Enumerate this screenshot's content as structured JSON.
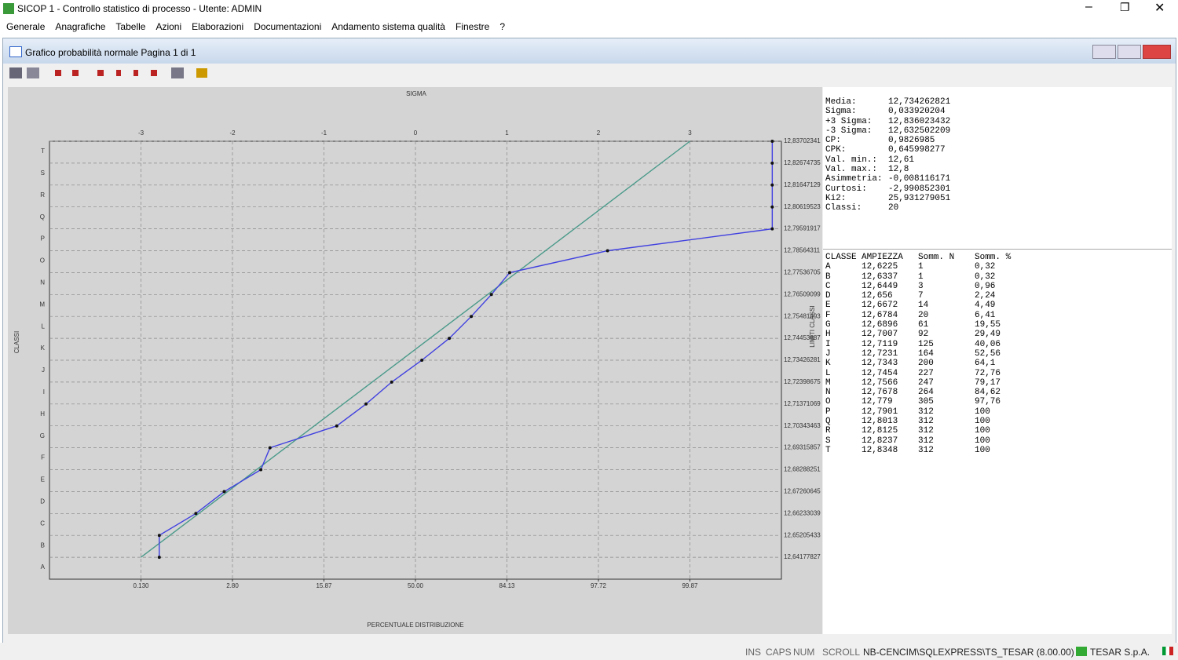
{
  "window": {
    "title": "SICOP 1 - Controllo statistico di processo - Utente: ADMIN"
  },
  "menu": [
    "Generale",
    "Anagrafiche",
    "Tabelle",
    "Azioni",
    "Elaborazioni",
    "Documentazioni",
    "Andamento sistema qualità",
    "Finestre",
    "?"
  ],
  "child_window": {
    "title": "Grafico probabilità normale Pagina 1 di 1"
  },
  "chart_data": {
    "type": "line",
    "title": "SIGMA",
    "xlabel": "PERCENTUALE DISTRIBUZIONE",
    "ylabel": "CLASSI",
    "y2label": "LIMITI CLASSI",
    "xlim": [
      -4,
      4
    ],
    "xticks": [
      -3,
      -2,
      -1,
      0,
      1,
      2,
      3
    ],
    "x2ticks": [
      {
        "value": -3,
        "label": "0.130"
      },
      {
        "value": -2,
        "label": "2.80"
      },
      {
        "value": -1,
        "label": "15.87"
      },
      {
        "value": 0,
        "label": "50.00"
      },
      {
        "value": 1,
        "label": "84.13"
      },
      {
        "value": 2,
        "label": "97.72"
      },
      {
        "value": 3,
        "label": "99.87"
      }
    ],
    "ylim": [
      12.63150221,
      12.83702341
    ],
    "yticks": [
      {
        "value": 12.64177827,
        "label": "12,64177827"
      },
      {
        "value": 12.65205433,
        "label": "12,65205433"
      },
      {
        "value": 12.66233039,
        "label": "12,66233039"
      },
      {
        "value": 12.67260645,
        "label": "12,67260645"
      },
      {
        "value": 12.68288251,
        "label": "12,68288251"
      },
      {
        "value": 12.69315857,
        "label": "12,69315857"
      },
      {
        "value": 12.70343463,
        "label": "12,70343463"
      },
      {
        "value": 12.71371069,
        "label": "12,71371069"
      },
      {
        "value": 12.72398675,
        "label": "12,72398675"
      },
      {
        "value": 12.73426281,
        "label": "12,73426281"
      },
      {
        "value": 12.74453887,
        "label": "12,74453887"
      },
      {
        "value": 12.75481493,
        "label": "12,75481493"
      },
      {
        "value": 12.76509099,
        "label": "12,76509099"
      },
      {
        "value": 12.77536705,
        "label": "12,77536705"
      },
      {
        "value": 12.78564311,
        "label": "12,78564311"
      },
      {
        "value": 12.79591917,
        "label": "12,79591917"
      },
      {
        "value": 12.80619523,
        "label": "12,80619523"
      },
      {
        "value": 12.81647129,
        "label": "12,81647129"
      },
      {
        "value": 12.82674735,
        "label": "12,82674735"
      },
      {
        "value": 12.83702341,
        "label": "12,83702341"
      }
    ],
    "yclasses": [
      "A",
      "B",
      "C",
      "D",
      "E",
      "F",
      "G",
      "H",
      "I",
      "J",
      "K",
      "L",
      "M",
      "N",
      "O",
      "P",
      "Q",
      "R",
      "S",
      "T"
    ],
    "grid": true,
    "series": [
      {
        "color": "#4a9a8a",
        "markers": false,
        "x": [
          -3,
          3
        ],
        "values": [
          12.64177827,
          12.83702341
        ]
      },
      {
        "color": "#4040e0",
        "markers": true,
        "x": [
          -2.8,
          -2.8,
          -2.4,
          -2.09,
          -1.69,
          -1.59,
          -0.86,
          -0.54,
          -0.26,
          0.07,
          0.37,
          0.61,
          0.83,
          1.03,
          2.1,
          3.9,
          3.9,
          3.9,
          3.9,
          3.9
        ],
        "values": [
          12.64177827,
          12.65205433,
          12.66233039,
          12.67260645,
          12.68288251,
          12.69315857,
          12.70343463,
          12.71371069,
          12.72398675,
          12.73426281,
          12.74453887,
          12.75481493,
          12.76509099,
          12.77536705,
          12.78564311,
          12.79591917,
          12.80619523,
          12.81647129,
          12.82674735,
          12.83702341
        ]
      }
    ]
  },
  "stats": [
    [
      "Media:",
      "12,734262821"
    ],
    [
      "Sigma:",
      "0,033920204"
    ],
    [
      "+3 Sigma:",
      "12,836023432"
    ],
    [
      "-3 Sigma:",
      "12,632502209"
    ],
    [
      "CP:",
      "0,9826985"
    ],
    [
      "CPK:",
      "0,645998277"
    ],
    [
      "Val. min.:",
      "12,61"
    ],
    [
      "Val. max.:",
      "12,8"
    ],
    [
      "Asimmetria:",
      "-0,008116171"
    ],
    [
      "Curtosi:",
      "-2,990852301"
    ],
    [
      "Ki2:",
      "25,931279051"
    ],
    [
      "Classi:",
      "20"
    ]
  ],
  "table": {
    "header": [
      "CLASSE",
      "AMPIEZZA",
      "Somm. N",
      "Somm. %"
    ],
    "rows": [
      [
        "A",
        "12,6225",
        "1",
        "0,32"
      ],
      [
        "B",
        "12,6337",
        "1",
        "0,32"
      ],
      [
        "C",
        "12,6449",
        "3",
        "0,96"
      ],
      [
        "D",
        "12,656",
        "7",
        "2,24"
      ],
      [
        "E",
        "12,6672",
        "14",
        "4,49"
      ],
      [
        "F",
        "12,6784",
        "20",
        "6,41"
      ],
      [
        "G",
        "12,6896",
        "61",
        "19,55"
      ],
      [
        "H",
        "12,7007",
        "92",
        "29,49"
      ],
      [
        "I",
        "12,7119",
        "125",
        "40,06"
      ],
      [
        "J",
        "12,7231",
        "164",
        "52,56"
      ],
      [
        "K",
        "12,7343",
        "200",
        "64,1"
      ],
      [
        "L",
        "12,7454",
        "227",
        "72,76"
      ],
      [
        "M",
        "12,7566",
        "247",
        "79,17"
      ],
      [
        "N",
        "12,7678",
        "264",
        "84,62"
      ],
      [
        "O",
        "12,779",
        "305",
        "97,76"
      ],
      [
        "P",
        "12,7901",
        "312",
        "100"
      ],
      [
        "Q",
        "12,8013",
        "312",
        "100"
      ],
      [
        "R",
        "12,8125",
        "312",
        "100"
      ],
      [
        "S",
        "12,8237",
        "312",
        "100"
      ],
      [
        "T",
        "12,8348",
        "312",
        "100"
      ]
    ]
  },
  "status_bar": [
    "INS",
    "CAPS",
    "NUM",
    "SCROLL",
    "NB-CENCIM\\SQLEXPRESS\\TS_TESAR (8.00.00)",
    "TESAR S.p.A."
  ]
}
